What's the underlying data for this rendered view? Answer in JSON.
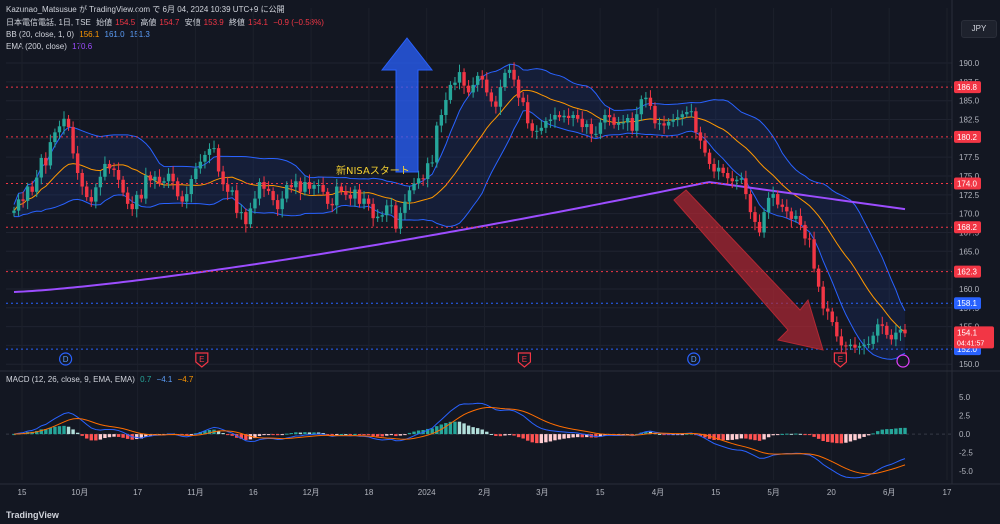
{
  "published": "Kazunao_Matsusue が TradingView.com で 6月 04, 2024 10:39 UTC+9 に公開",
  "currency_button": "JPY",
  "branding": "TradingView",
  "header": {
    "symbol": "日本電信電話, 1日, TSE",
    "open_label": "始値",
    "open": "154.5",
    "high_label": "高値",
    "high": "154.7",
    "low_label": "安値",
    "low": "153.9",
    "close_label": "終値",
    "close": "154.1",
    "change": "−0.9 (−0.58%)"
  },
  "bb_legend": {
    "label": "BB (20, close, 1, 0)",
    "basis": "156.1",
    "upper": "161.0",
    "lower": "151.3"
  },
  "ema_legend": {
    "label": "EMA (200, close)",
    "value": "170.6"
  },
  "macd_legend": {
    "label": "MACD (12, 26, close, 9, EMA, EMA)",
    "hist": "0.7",
    "macd": "−4.1",
    "signal": "−4.7"
  },
  "chart_data": {
    "type": "candlestick",
    "price_axis": {
      "ticks": [
        150.0,
        152.5,
        155.0,
        157.5,
        160.0,
        162.5,
        165.0,
        167.5,
        170.0,
        172.5,
        175.0,
        177.5,
        180.0,
        182.5,
        185.0,
        187.5,
        190.0
      ],
      "range": [
        149.5,
        192.0
      ]
    },
    "macd_axis": {
      "ticks": [
        5.0,
        2.5,
        0.0,
        -2.5,
        -5.0
      ],
      "range": [
        -6.2,
        6.5
      ]
    },
    "time_axis": {
      "labels": [
        "15",
        "10月",
        "17",
        "11月",
        "16",
        "12月",
        "18",
        "2024",
        "2月",
        "3月",
        "15",
        "4月",
        "15",
        "5月",
        "20",
        "6月",
        "17"
      ]
    },
    "horizontal_levels": [
      {
        "value": 186.8,
        "label": "186.8",
        "color": "#f23645"
      },
      {
        "value": 180.2,
        "label": "180.2",
        "color": "#f23645"
      },
      {
        "value": 174.0,
        "label": "174.0",
        "color": "#f23645"
      },
      {
        "value": 168.2,
        "label": "168.2",
        "color": "#f23645"
      },
      {
        "value": 162.3,
        "label": "162.3",
        "color": "#f23645"
      },
      {
        "value": 158.1,
        "label": "158.1",
        "color": "#2962ff"
      },
      {
        "value": 152.0,
        "label": "152.0",
        "color": "#2962ff"
      }
    ],
    "last_price": {
      "value": 154.1,
      "label": "154.1",
      "countdown": "04:41:57"
    },
    "annotation": "新NISAスタート",
    "event_markers": [
      {
        "type": "D",
        "pos": 0.063
      },
      {
        "type": "E",
        "pos": 0.207
      },
      {
        "type": "E",
        "pos": 0.548
      },
      {
        "type": "D",
        "pos": 0.727
      },
      {
        "type": "E",
        "pos": 0.882
      }
    ],
    "close_series": [
      170.4,
      171.9,
      171.7,
      173.6,
      172.9,
      174.8,
      177.4,
      176.4,
      179.5,
      180.8,
      181.6,
      182.6,
      181.5,
      178.0,
      175.4,
      173.6,
      172.2,
      171.6,
      173.5,
      174.9,
      176.6,
      176.0,
      175.8,
      174.5,
      172.8,
      171.3,
      170.6,
      172.5,
      172.0,
      175.1,
      174.4,
      174.9,
      174.1,
      174.3,
      175.3,
      174.3,
      172.3,
      171.6,
      172.6,
      174.6,
      176.0,
      176.9,
      177.8,
      178.6,
      178.7,
      175.6,
      173.9,
      172.9,
      173.1,
      170.1,
      170.2,
      168.6,
      170.7,
      172.0,
      174.2,
      173.3,
      173.0,
      171.8,
      170.6,
      172.0,
      173.8,
      173.5,
      174.3,
      172.9,
      174.2,
      173.3,
      173.8,
      173.8,
      172.9,
      171.3,
      171.1,
      173.6,
      173.0,
      172.5,
      172.0,
      173.2,
      171.3,
      172.0,
      171.3,
      169.4,
      169.6,
      169.8,
      171.1,
      171.1,
      168.0,
      170.1,
      171.6,
      173.1,
      174.0,
      174.7,
      174.6,
      176.7,
      176.8,
      181.7,
      183.1,
      185.1,
      187.1,
      187.4,
      188.8,
      187.0,
      186.1,
      187.1,
      188.3,
      187.8,
      186.1,
      184.9,
      184.2,
      186.8,
      188.7,
      189.1,
      187.8,
      185.4,
      184.8,
      182.0,
      181.0,
      181.0,
      181.4,
      182.3,
      182.5,
      183.1,
      182.8,
      183.0,
      182.7,
      183.1,
      182.6,
      181.5,
      181.9,
      180.6,
      180.6,
      182.1,
      183.1,
      182.8,
      181.8,
      182.1,
      182.1,
      182.7,
      181.0,
      183.2,
      185.2,
      185.4,
      184.3,
      182.0,
      182.0,
      181.7,
      182.2,
      182.5,
      182.8,
      183.2,
      183.5,
      183.6,
      180.8,
      179.7,
      178.1,
      176.6,
      175.6,
      176.1,
      175.4,
      174.7,
      174.3,
      174.5,
      174.7,
      172.6,
      170.2,
      168.9,
      167.5,
      170.2,
      172.1,
      172.6,
      171.2,
      170.9,
      170.3,
      169.3,
      169.7,
      168.5,
      166.7,
      166.6,
      162.7,
      160.3,
      157.4,
      157.0,
      155.6,
      153.7,
      152.5,
      152.4,
      152.6,
      152.2,
      152.4,
      152.6,
      152.7,
      153.8,
      155.3,
      155.1,
      153.9,
      153.3,
      154.2,
      154.6,
      154.1
    ],
    "bands": {
      "basis_last": 156.1,
      "upper_last": 161.0,
      "lower_last": 151.3
    },
    "ema200": {
      "first": 159.6,
      "last": 170.6
    }
  }
}
